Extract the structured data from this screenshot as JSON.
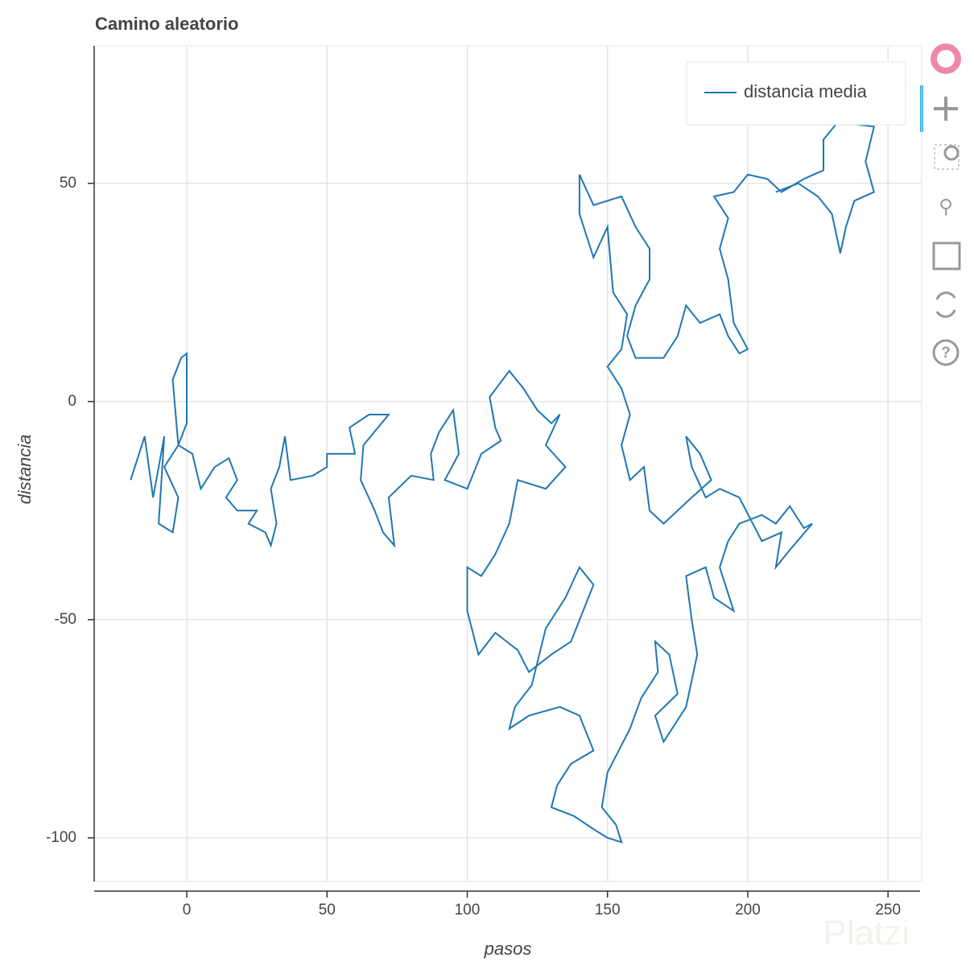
{
  "chart_data": {
    "type": "line",
    "title": "Camino aleatorio",
    "x_label": "pasos",
    "y_label": "distancia",
    "xlim": [
      -33,
      262
    ],
    "ylim": [
      -110,
      81.5
    ],
    "xticks": [
      0,
      50,
      100,
      150,
      200,
      250
    ],
    "yticks": [
      -100,
      -50,
      0,
      50
    ],
    "grid": true,
    "legend_position": "top-right",
    "watermark": "Platzi",
    "series": [
      {
        "name": "distancia media",
        "color": "#1f77b4",
        "x": [
          -20,
          -15,
          -12,
          -8,
          -10,
          -5,
          -3,
          -8,
          -3,
          -5,
          -2,
          0,
          0,
          -3,
          2,
          5,
          10,
          15,
          18,
          14,
          18,
          25,
          22,
          28,
          30,
          32,
          30,
          33,
          35,
          37,
          45,
          50,
          50,
          60,
          58,
          65,
          72,
          63,
          62,
          67,
          70,
          74,
          72,
          80,
          88,
          87,
          90,
          95,
          97,
          92,
          100,
          105,
          112,
          110,
          108,
          115,
          120,
          125,
          130,
          133,
          128,
          135,
          128,
          118,
          115,
          110,
          105,
          100,
          100,
          104,
          110,
          118,
          122,
          130,
          137,
          145,
          140,
          135,
          128,
          123,
          117,
          115,
          122,
          133,
          140,
          145,
          137,
          132,
          130,
          138,
          145,
          150,
          155,
          153,
          148,
          150,
          158,
          162,
          168,
          167,
          172,
          175,
          167,
          170,
          178,
          182,
          180,
          178,
          185,
          188,
          195,
          190,
          193,
          197,
          205,
          210,
          215,
          220,
          223,
          215,
          210,
          212,
          205,
          197,
          190,
          185,
          180,
          178,
          183,
          187,
          180,
          175,
          170,
          165,
          163,
          158,
          155,
          158,
          155,
          150,
          155,
          157,
          152,
          150,
          145,
          140,
          140,
          145,
          155,
          160,
          165,
          165,
          160,
          157,
          160,
          170,
          175,
          178,
          183,
          190,
          193,
          197,
          200,
          195,
          193,
          190,
          193,
          188,
          195,
          200,
          207,
          212,
          220,
          227,
          227,
          232,
          245,
          242,
          245,
          238,
          235,
          233,
          230,
          225,
          218,
          210
        ],
        "values": [
          -18,
          -8,
          -22,
          -8,
          -28,
          -30,
          -22,
          -15,
          -10,
          5,
          10,
          11,
          -5,
          -10,
          -12,
          -20,
          -15,
          -13,
          -18,
          -22,
          -25,
          -25,
          -28,
          -30,
          -33,
          -28,
          -20,
          -15,
          -8,
          -18,
          -17,
          -15,
          -12,
          -12,
          -6,
          -3,
          -3,
          -10,
          -18,
          -25,
          -30,
          -33,
          -22,
          -17,
          -18,
          -12,
          -7,
          -2,
          -12,
          -18,
          -20,
          -12,
          -9,
          -6,
          1,
          7,
          3,
          -2,
          -5,
          -3,
          -10,
          -15,
          -20,
          -18,
          -28,
          -35,
          -40,
          -38,
          -48,
          -58,
          -53,
          -57,
          -62,
          -58,
          -55,
          -42,
          -38,
          -45,
          -52,
          -65,
          -70,
          -75,
          -72,
          -70,
          -72,
          -80,
          -83,
          -88,
          -93,
          -95,
          -98,
          -100,
          -101,
          -97,
          -93,
          -85,
          -75,
          -68,
          -62,
          -55,
          -58,
          -67,
          -72,
          -78,
          -70,
          -58,
          -50,
          -40,
          -38,
          -45,
          -48,
          -38,
          -32,
          -28,
          -26,
          -28,
          -24,
          -29,
          -28,
          -34,
          -38,
          -30,
          -32,
          -22,
          -20,
          -22,
          -15,
          -8,
          -12,
          -18,
          -22,
          -25,
          -28,
          -25,
          -15,
          -18,
          -10,
          -3,
          3,
          8,
          12,
          20,
          25,
          40,
          33,
          43,
          52,
          45,
          47,
          40,
          35,
          28,
          22,
          15,
          10,
          10,
          15,
          22,
          18,
          20,
          15,
          11,
          12,
          18,
          28,
          35,
          42,
          47,
          48,
          52,
          51,
          48,
          51,
          53,
          60,
          64,
          63,
          55,
          48,
          46,
          40,
          34,
          43,
          47,
          50,
          48
        ]
      }
    ]
  }
}
